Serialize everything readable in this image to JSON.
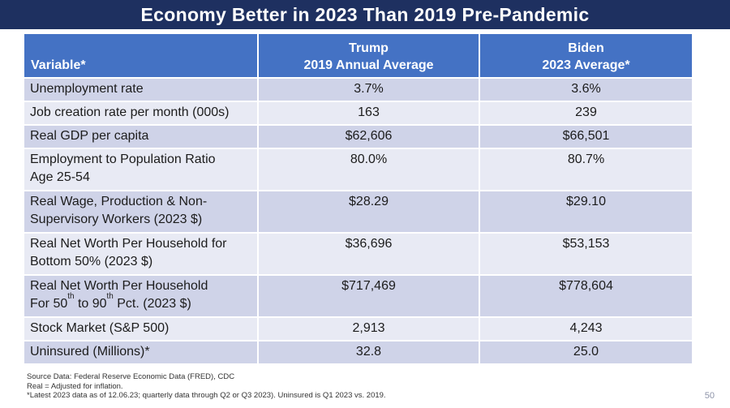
{
  "slide": {
    "title": "Economy Better in 2023 Than 2019 Pre-Pandemic",
    "page_number": "50"
  },
  "colors": {
    "title_bar": "#1E3060",
    "table_header_fill": "#4472C4",
    "band_dark": "#CFD3E8",
    "band_light": "#E8EAF4",
    "header_text": "#FFFFFF"
  },
  "table": {
    "header": {
      "variable": "Variable*",
      "trump": [
        "Trump",
        "2019 Annual Average"
      ],
      "biden": [
        "Biden",
        "2023 Average*"
      ]
    },
    "rows": [
      {
        "variable_lines": [
          "Unemployment rate"
        ],
        "trump": "3.7%",
        "biden": "3.6%"
      },
      {
        "variable_lines": [
          "Job creation rate per month (000s)"
        ],
        "trump": "163",
        "biden": "239"
      },
      {
        "variable_lines": [
          "Real GDP per capita"
        ],
        "trump": "$62,606",
        "biden": "$66,501"
      },
      {
        "variable_lines": [
          "Employment to Population Ratio",
          "Age 25-54"
        ],
        "trump": "80.0%",
        "biden": "80.7%"
      },
      {
        "variable_lines": [
          "Real Wage, Production & Non-",
          "Supervisory Workers (2023 $)"
        ],
        "trump": "$28.29",
        "biden": "$29.10"
      },
      {
        "variable_lines": [
          "Real Net Worth Per Household for",
          "Bottom 50% (2023 $)"
        ],
        "trump": "$36,696",
        "biden": "$53,153"
      },
      {
        "variable_lines": [
          "Real Net Worth Per Household",
          "For 50^{th} to 90^{th} Pct. (2023 $)"
        ],
        "trump": "$717,469",
        "biden": "$778,604"
      },
      {
        "variable_lines": [
          "Stock Market (S&P 500)"
        ],
        "trump": "2,913",
        "biden": "4,243"
      },
      {
        "variable_lines": [
          "Uninsured (Millions)*"
        ],
        "trump": "32.8",
        "biden": "25.0"
      }
    ]
  },
  "chart_data": {
    "type": "table",
    "title": "Economy Better in 2023 Than 2019 Pre-Pandemic",
    "categories": [
      "Unemployment rate",
      "Job creation rate per month (000s)",
      "Real GDP per capita",
      "Employment to Population Ratio Age 25-54",
      "Real Wage, Production & Non-Supervisory Workers (2023 $)",
      "Real Net Worth Per Household for Bottom 50% (2023 $)",
      "Real Net Worth Per Household For 50th to 90th Pct. (2023 $)",
      "Stock Market (S&P 500)",
      "Uninsured (Millions)*"
    ],
    "series": [
      {
        "name": "Trump 2019 Annual Average",
        "values": [
          "3.7%",
          "163",
          "$62,606",
          "80.0%",
          "$28.29",
          "$36,696",
          "$717,469",
          "2,913",
          "32.8"
        ]
      },
      {
        "name": "Biden 2023 Average*",
        "values": [
          "3.6%",
          "239",
          "$66,501",
          "80.7%",
          "$29.10",
          "$53,153",
          "$778,604",
          "4,243",
          "25.0"
        ]
      }
    ]
  },
  "footnotes": [
    "Source Data:  Federal Reserve Economic Data (FRED), CDC",
    "Real = Adjusted for inflation.",
    "*Latest 2023 data as of 12.06.23; quarterly data through Q2 or Q3 2023).  Uninsured is Q1 2023 vs. 2019."
  ]
}
